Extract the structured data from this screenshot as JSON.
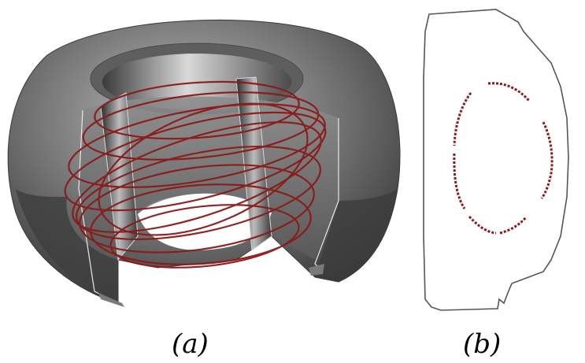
{
  "panels": {
    "a": {
      "label": "(a)",
      "description_colors": {
        "vessel": "#5b5b5b",
        "field_line": "#8b1a1a"
      }
    },
    "b": {
      "label": "(b)",
      "description_colors": {
        "wall": "#555555",
        "poincare": "#8b1a1a"
      }
    }
  }
}
